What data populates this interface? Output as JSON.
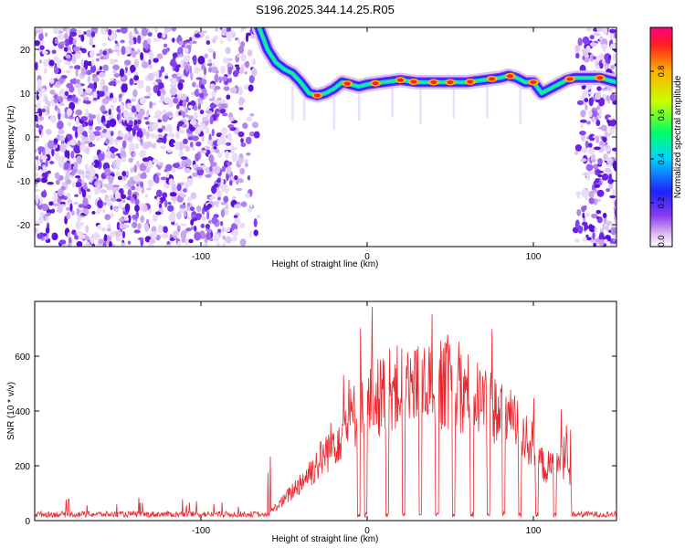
{
  "title": "S196.2025.344.14.25.R05",
  "chart_data": [
    {
      "type": "heatmap",
      "title": "S196.2025.344.14.25.R05",
      "xlabel": "Height of straight line (km)",
      "ylabel": "Frequency (Hz)",
      "xlim": [
        -200,
        150
      ],
      "ylim": [
        -25,
        25
      ],
      "xticks": [
        -100,
        0,
        100
      ],
      "yticks": [
        -20,
        -10,
        0,
        10,
        20
      ],
      "colorbar": {
        "label": "Normalized spectral amplitude",
        "range": [
          0,
          1
        ],
        "ticks": [
          "0.0",
          "0.2",
          "0.4",
          "0.6",
          "0.8"
        ],
        "colors": [
          "#ffffff",
          "#d9b8f0",
          "#8a3df0",
          "#2020ff",
          "#00d4ff",
          "#00ff66",
          "#c8ff00",
          "#ffb000",
          "#ff2020",
          "#ff0080"
        ]
      },
      "noise_regions_x": [
        [
          -200,
          -65
        ],
        [
          125,
          150
        ]
      ],
      "ridge": {
        "x": [
          -65,
          -60,
          -55,
          -50,
          -45,
          -40,
          -35,
          -30,
          -25,
          -20,
          -15,
          -10,
          -5,
          0,
          10,
          20,
          30,
          40,
          50,
          60,
          70,
          80,
          85,
          90,
          95,
          100,
          105,
          110,
          115,
          120,
          125,
          130,
          135,
          140,
          145,
          150
        ],
        "y": [
          25,
          20,
          17,
          15.5,
          14.5,
          12.5,
          10,
          9.5,
          10,
          11,
          12.5,
          12,
          11.5,
          12,
          12.5,
          13,
          12.5,
          12.5,
          12.5,
          12.5,
          13,
          13.5,
          14,
          13.5,
          12.5,
          12.5,
          10,
          11,
          12,
          13,
          13.5,
          13.5,
          13.5,
          13.5,
          13,
          12.5
        ]
      }
    },
    {
      "type": "line",
      "xlabel": "Height of straight line (km)",
      "ylabel": "SNR (10 * v/v)",
      "xlim": [
        -200,
        150
      ],
      "ylim": [
        0,
        800
      ],
      "xticks": [
        -100,
        0,
        100
      ],
      "yticks": [
        0,
        200,
        400,
        600
      ],
      "series": [
        {
          "name": "SNR",
          "color": "#e8282f",
          "envelope_x": [
            -200,
            -60,
            -55,
            -50,
            -45,
            -40,
            -35,
            -30,
            -25,
            -20,
            -15,
            -10,
            -5,
            0,
            10,
            20,
            30,
            40,
            50,
            60,
            70,
            80,
            90,
            100,
            105,
            110,
            115,
            120,
            125,
            150
          ],
          "envelope_y": [
            20,
            25,
            60,
            90,
            130,
            170,
            210,
            250,
            300,
            350,
            400,
            450,
            480,
            520,
            560,
            590,
            600,
            605,
            595,
            570,
            530,
            480,
            420,
            330,
            250,
            230,
            250,
            280,
            30,
            20
          ],
          "spike_x": 3,
          "spike_y": 780
        }
      ]
    }
  ]
}
